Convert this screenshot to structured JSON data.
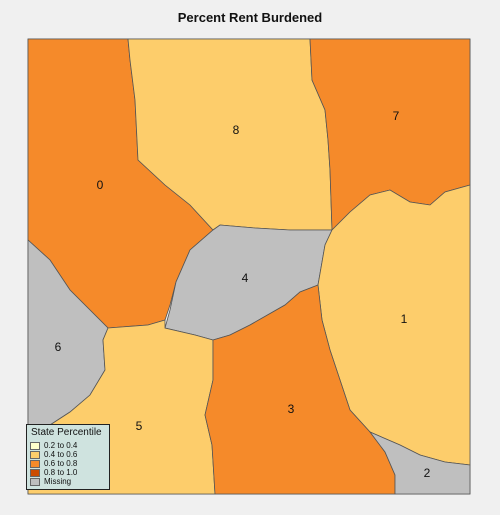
{
  "title": "Percent Rent Burdened",
  "colors": {
    "0.2 to 0.4": "#ffffcc",
    "0.4 to 0.6": "#fdcd6b",
    "0.6 to 0.8": "#f58a2a",
    "0.8 to 1.0": "#cc4c02",
    "Missing": "#bfbfbf",
    "background": "#f0f0f0",
    "border": "#555555"
  },
  "regions": [
    {
      "id": "0",
      "label": "0",
      "class": "0.6 to 0.8"
    },
    {
      "id": "1",
      "label": "1",
      "class": "0.4 to 0.6"
    },
    {
      "id": "2",
      "label": "2",
      "class": "Missing"
    },
    {
      "id": "3",
      "label": "3",
      "class": "0.6 to 0.8"
    },
    {
      "id": "4",
      "label": "4",
      "class": "Missing"
    },
    {
      "id": "5",
      "label": "5",
      "class": "0.4 to 0.6"
    },
    {
      "id": "6",
      "label": "6",
      "class": "Missing"
    },
    {
      "id": "7",
      "label": "7",
      "class": "0.6 to 0.8"
    },
    {
      "id": "8",
      "label": "8",
      "class": "0.4 to 0.6"
    }
  ],
  "legend": {
    "title": "State Percentile",
    "entries": [
      {
        "label": "0.2 to 0.4",
        "color": "#ffffcc"
      },
      {
        "label": "0.4 to 0.6",
        "color": "#fdcd6b"
      },
      {
        "label": "0.6 to 0.8",
        "color": "#f58a2a"
      },
      {
        "label": "0.8 to 1.0",
        "color": "#cc4c02"
      },
      {
        "label": "Missing",
        "color": "#bfbfbf"
      }
    ]
  }
}
